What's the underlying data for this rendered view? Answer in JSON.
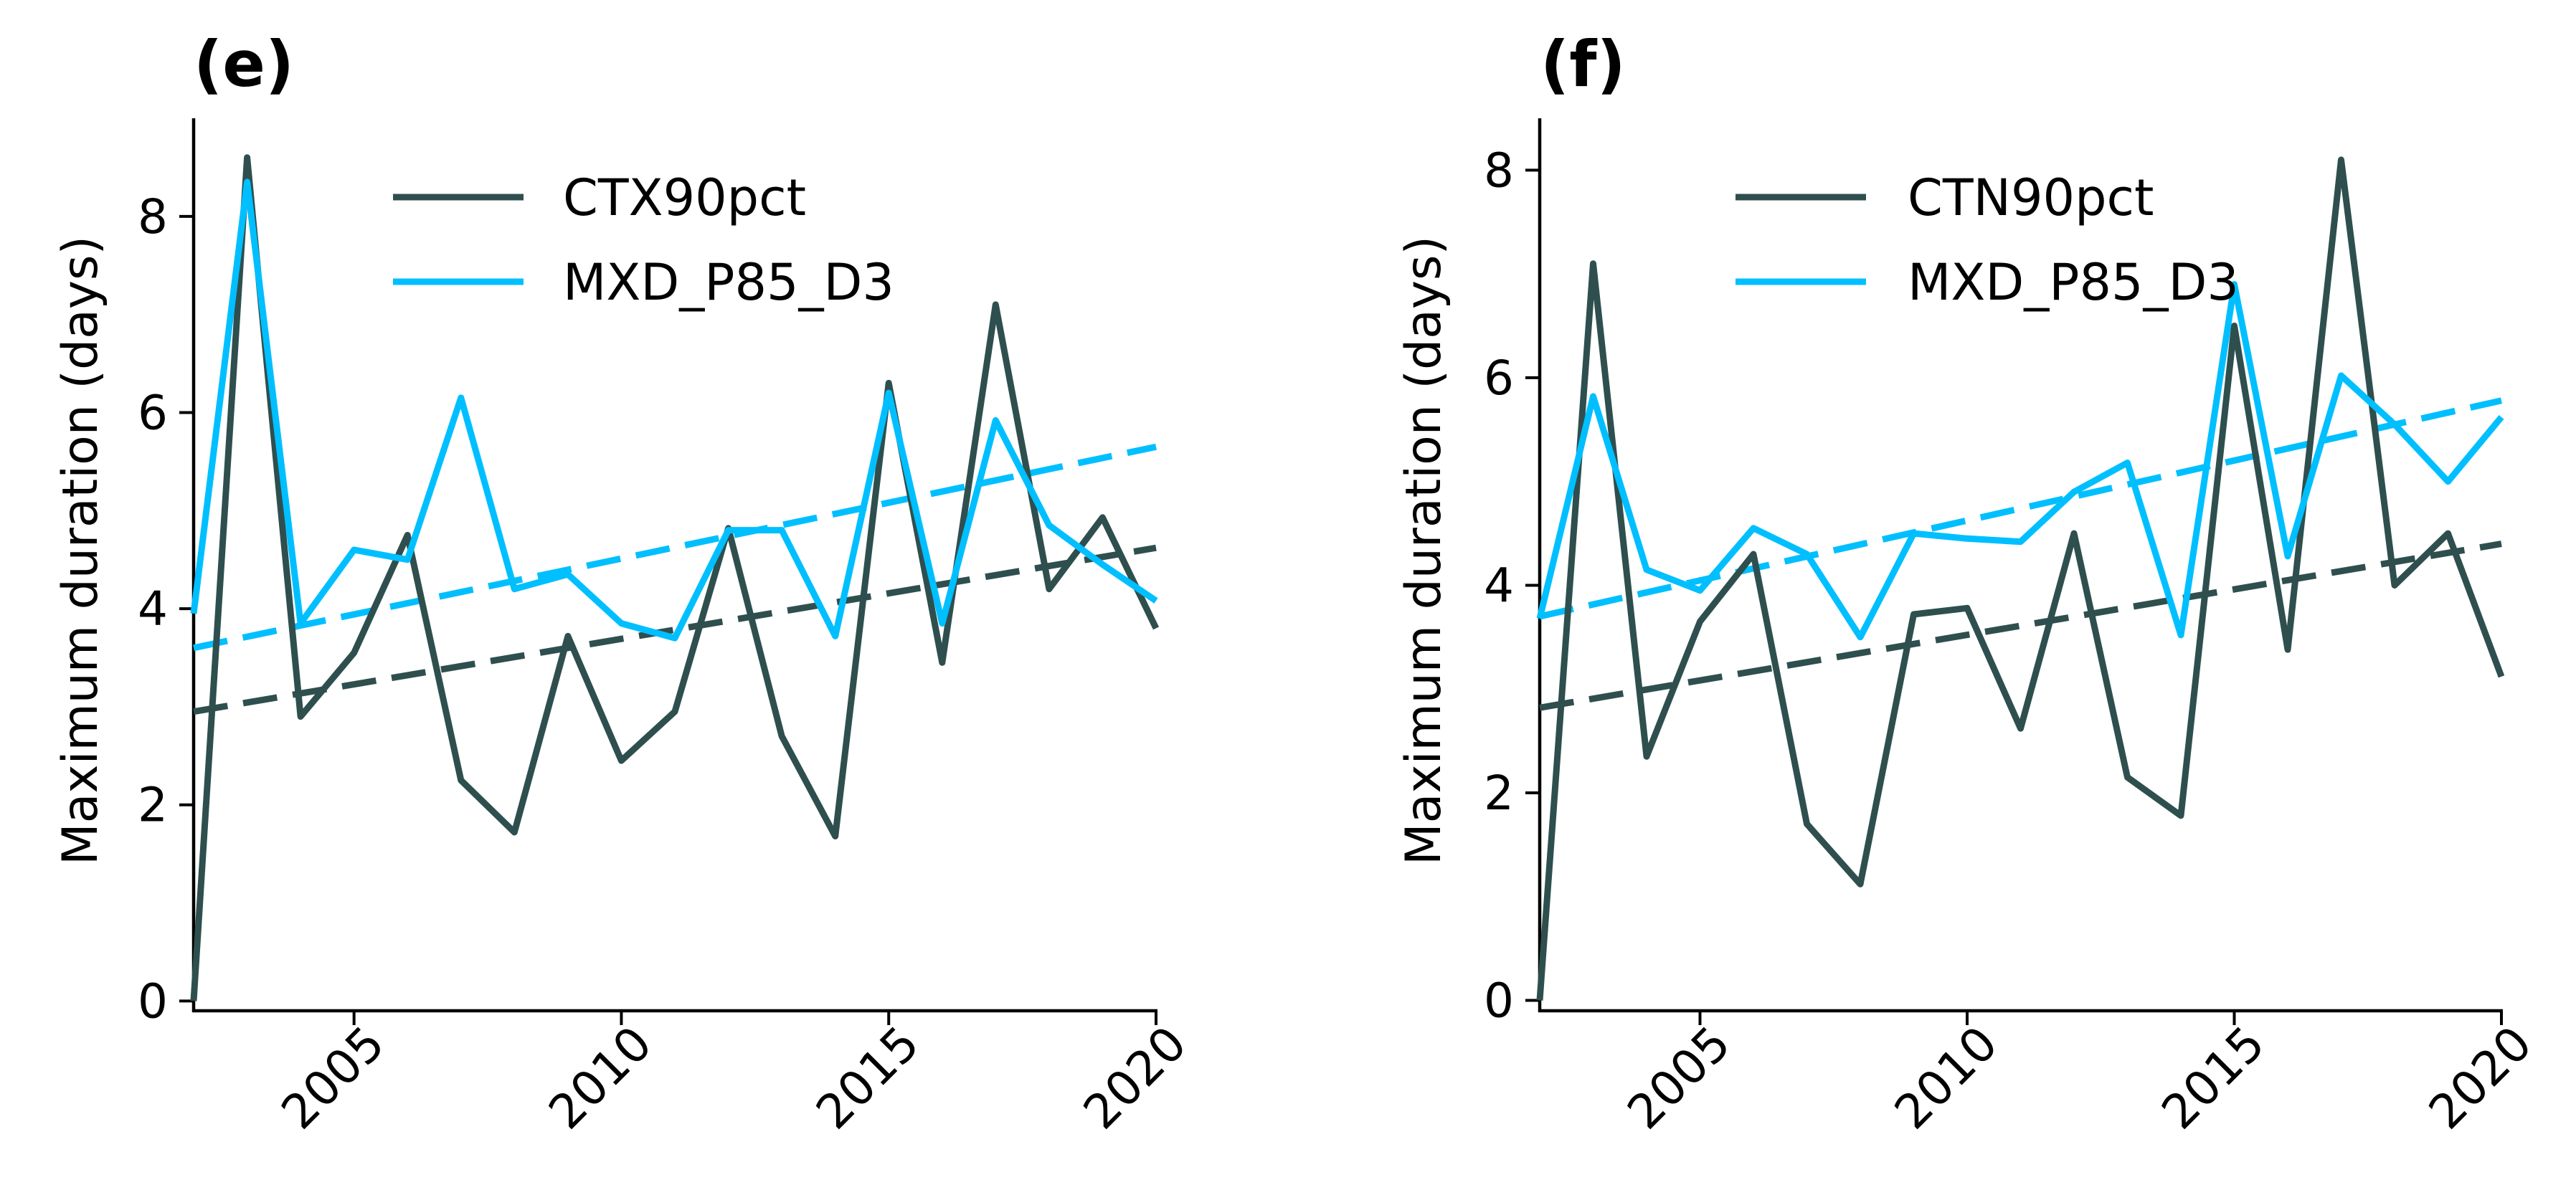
{
  "colors": {
    "obs": "#2f4f4f",
    "mxd": "#00bfff",
    "axis": "#000000"
  },
  "chart_data": [
    {
      "panel_label": "(e)",
      "type": "line",
      "ylabel": "Maximum duration (days)",
      "xlabel": "",
      "xlim": [
        2002,
        2020
      ],
      "ylim": [
        -0.1,
        9.0
      ],
      "xticks": [
        2005,
        2010,
        2015,
        2020
      ],
      "yticks": [
        0,
        2,
        4,
        6,
        8
      ],
      "legend_position": "top-center",
      "x": [
        2002,
        2003,
        2004,
        2005,
        2006,
        2007,
        2008,
        2009,
        2010,
        2011,
        2012,
        2013,
        2014,
        2015,
        2016,
        2017,
        2018,
        2019,
        2020
      ],
      "series": [
        {
          "name": "CTX90pct",
          "color": "#2f4f4f",
          "values": [
            0.0,
            8.6,
            2.9,
            3.55,
            4.75,
            2.25,
            1.72,
            3.72,
            2.45,
            2.95,
            4.82,
            2.7,
            1.68,
            6.3,
            3.45,
            7.1,
            4.2,
            4.93,
            3.8
          ]
        },
        {
          "name": "MXD_P85_D3",
          "color": "#00bfff",
          "values": [
            3.95,
            8.35,
            3.85,
            4.6,
            4.5,
            6.15,
            4.2,
            4.35,
            3.85,
            3.7,
            4.8,
            4.8,
            3.72,
            6.2,
            3.85,
            5.92,
            4.85,
            4.45,
            4.08
          ]
        }
      ],
      "trends": [
        {
          "series": "CTX90pct",
          "color": "#2f4f4f",
          "start": [
            2002,
            2.95
          ],
          "end": [
            2020,
            4.62
          ]
        },
        {
          "series": "MXD_P85_D3",
          "color": "#00bfff",
          "start": [
            2002,
            3.6
          ],
          "end": [
            2020,
            5.65
          ]
        }
      ]
    },
    {
      "panel_label": "(f)",
      "type": "line",
      "ylabel": "Maximum duration (days)",
      "xlabel": "",
      "xlim": [
        2002,
        2020
      ],
      "ylim": [
        -0.1,
        8.5
      ],
      "xticks": [
        2005,
        2010,
        2015,
        2020
      ],
      "yticks": [
        0,
        2,
        4,
        6,
        8
      ],
      "legend_position": "top-center",
      "x": [
        2002,
        2003,
        2004,
        2005,
        2006,
        2007,
        2008,
        2009,
        2010,
        2011,
        2012,
        2013,
        2014,
        2015,
        2016,
        2017,
        2018,
        2019,
        2020
      ],
      "series": [
        {
          "name": "CTN90pct",
          "color": "#2f4f4f",
          "values": [
            0.0,
            7.1,
            2.35,
            3.65,
            4.3,
            1.7,
            1.12,
            3.72,
            3.78,
            2.62,
            4.5,
            2.15,
            1.78,
            6.5,
            3.38,
            8.1,
            4.0,
            4.5,
            3.12
          ]
        },
        {
          "name": "MXD_P85_D3",
          "color": "#00bfff",
          "values": [
            3.68,
            5.82,
            4.15,
            3.95,
            4.55,
            4.3,
            3.5,
            4.5,
            4.45,
            4.42,
            4.9,
            5.18,
            3.52,
            6.9,
            4.28,
            6.02,
            5.55,
            5.0,
            5.62
          ]
        }
      ],
      "trends": [
        {
          "series": "CTN90pct",
          "color": "#2f4f4f",
          "start": [
            2002,
            2.82
          ],
          "end": [
            2020,
            4.4
          ]
        },
        {
          "series": "MXD_P85_D3",
          "color": "#00bfff",
          "start": [
            2002,
            3.7
          ],
          "end": [
            2020,
            5.78
          ]
        }
      ]
    }
  ]
}
